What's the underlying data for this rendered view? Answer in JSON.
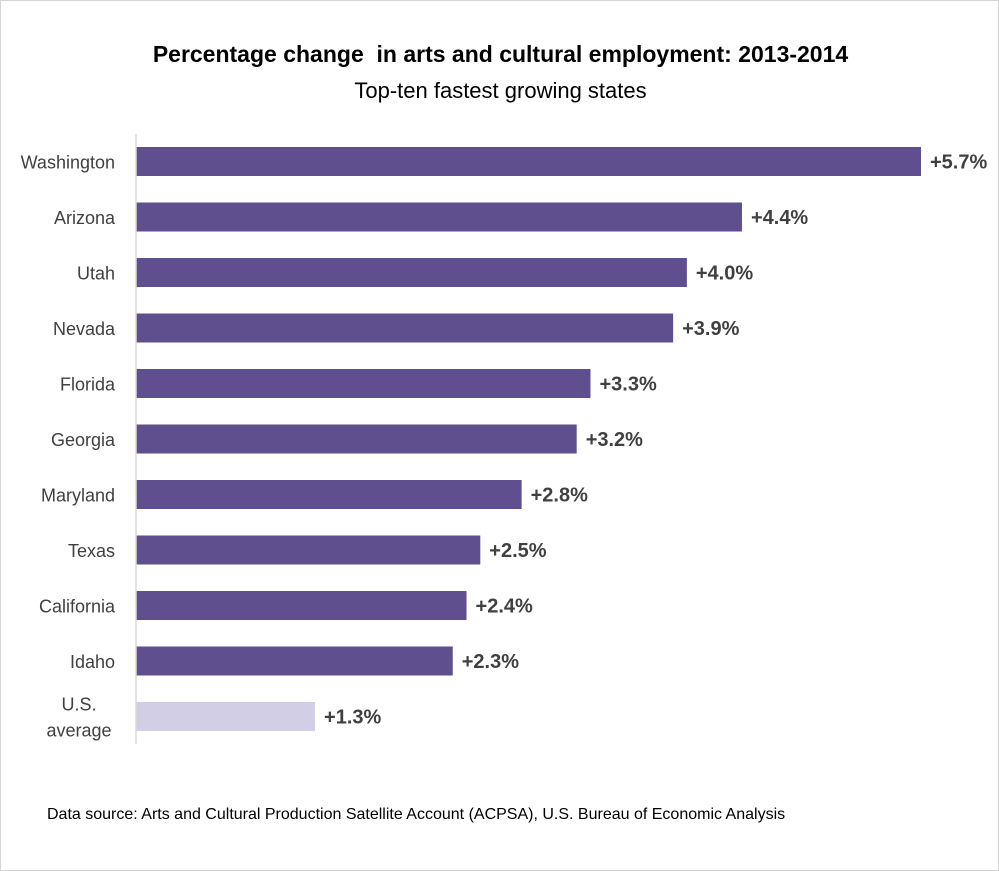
{
  "chart_data": {
    "type": "bar",
    "orientation": "horizontal",
    "title": "Percentage change  in arts and cultural employment: 2013-2014",
    "subtitle": "Top-ten fastest growing states",
    "categories": [
      "Washington",
      "Arizona",
      "Utah",
      "Nevada",
      "Florida",
      "Georgia",
      "Maryland",
      "Texas",
      "California",
      "Idaho",
      "U.S. average"
    ],
    "values": [
      5.7,
      4.4,
      4.0,
      3.9,
      3.3,
      3.2,
      2.8,
      2.5,
      2.4,
      2.3,
      1.3
    ],
    "data_labels": [
      "+5.7%",
      "+4.4%",
      "+4.0%",
      "+3.9%",
      "+3.3%",
      "+3.2%",
      "+2.8%",
      "+2.5%",
      "+2.4%",
      "+2.3%",
      "+1.3%"
    ],
    "xlim": [
      0,
      5.7
    ],
    "xlabel": "",
    "ylabel": "",
    "grid": false,
    "legend": "none",
    "colors": {
      "bar": "#5f4f8f",
      "average_bar": "#d2cee6",
      "axis": "#d9d9d9",
      "category_label": "#404040",
      "data_label": "#404040"
    }
  },
  "footnote": "Data source: Arts and Cultural Production Satellite Account (ACPSA), U.S. Bureau of Economic Analysis"
}
